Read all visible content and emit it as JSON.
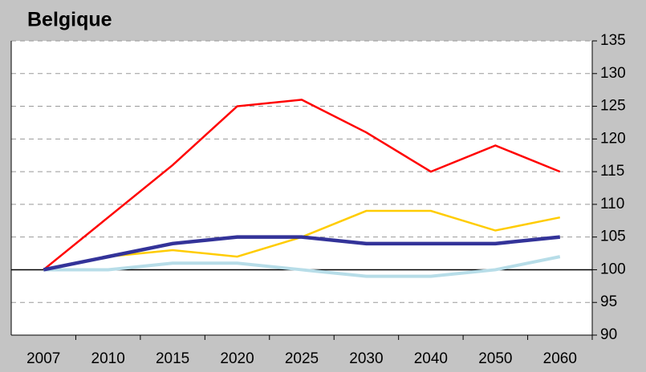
{
  "chart_data": {
    "type": "line",
    "title": "Belgique",
    "categories": [
      "2007",
      "2010",
      "2015",
      "2020",
      "2025",
      "2030",
      "2040",
      "2050",
      "2060"
    ],
    "series": [
      {
        "color": "#ff0000",
        "width": 2.5,
        "values": [
          100,
          108,
          116,
          125,
          126,
          121,
          115,
          119,
          115
        ]
      },
      {
        "color": "#ffcc00",
        "width": 2.5,
        "values": [
          100,
          102,
          103,
          102,
          105,
          109,
          109,
          106,
          108
        ]
      },
      {
        "color": "#b7dde8",
        "width": 4,
        "values": [
          100,
          100,
          101,
          101,
          100,
          99,
          99,
          100,
          102
        ]
      },
      {
        "color": "#333399",
        "width": 4.5,
        "values": [
          100,
          102,
          104,
          105,
          105,
          104,
          104,
          104,
          105
        ]
      }
    ],
    "ylim": [
      90,
      135
    ],
    "yticks": [
      90,
      95,
      100,
      105,
      110,
      115,
      120,
      125,
      130,
      135
    ],
    "grid": true,
    "y_axis_side": "right",
    "reference_line": 100
  }
}
